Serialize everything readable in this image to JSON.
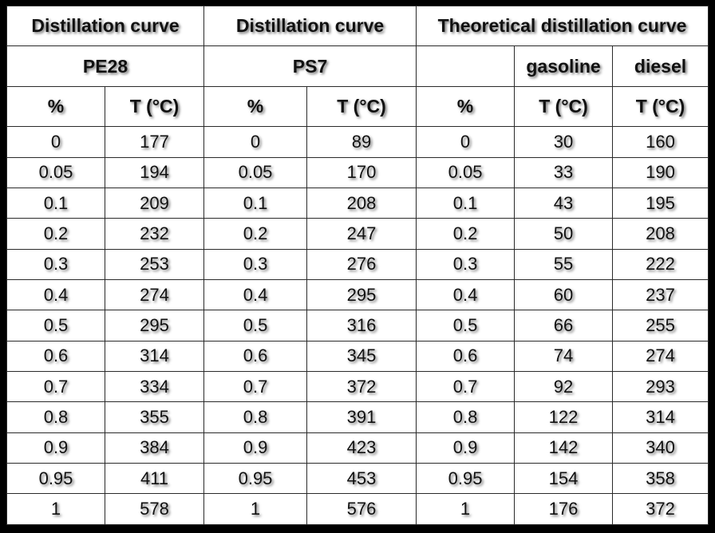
{
  "headers": {
    "group1": "Distillation curve",
    "group2": "Distillation curve",
    "group3": "Theoretical distillation curve",
    "sample1": "PE28",
    "sample2": "PS7",
    "gasoline": "gasoline",
    "diesel": "diesel",
    "pct": "%",
    "temp": "T (°C)"
  },
  "rows": [
    [
      "0",
      "177",
      "0",
      "89",
      "0",
      "30",
      "160"
    ],
    [
      "0.05",
      "194",
      "0.05",
      "170",
      "0.05",
      "33",
      "190"
    ],
    [
      "0.1",
      "209",
      "0.1",
      "208",
      "0.1",
      "43",
      "195"
    ],
    [
      "0.2",
      "232",
      "0.2",
      "247",
      "0.2",
      "50",
      "208"
    ],
    [
      "0.3",
      "253",
      "0.3",
      "276",
      "0.3",
      "55",
      "222"
    ],
    [
      "0.4",
      "274",
      "0.4",
      "295",
      "0.4",
      "60",
      "237"
    ],
    [
      "0.5",
      "295",
      "0.5",
      "316",
      "0.5",
      "66",
      "255"
    ],
    [
      "0.6",
      "314",
      "0.6",
      "345",
      "0.6",
      "74",
      "274"
    ],
    [
      "0.7",
      "334",
      "0.7",
      "372",
      "0.7",
      "92",
      "293"
    ],
    [
      "0.8",
      "355",
      "0.8",
      "391",
      "0.8",
      "122",
      "314"
    ],
    [
      "0.9",
      "384",
      "0.9",
      "423",
      "0.9",
      "142",
      "340"
    ],
    [
      "0.95",
      "411",
      "0.95",
      "453",
      "0.95",
      "154",
      "358"
    ],
    [
      "1",
      "578",
      "1",
      "576",
      "1",
      "176",
      "372"
    ]
  ]
}
